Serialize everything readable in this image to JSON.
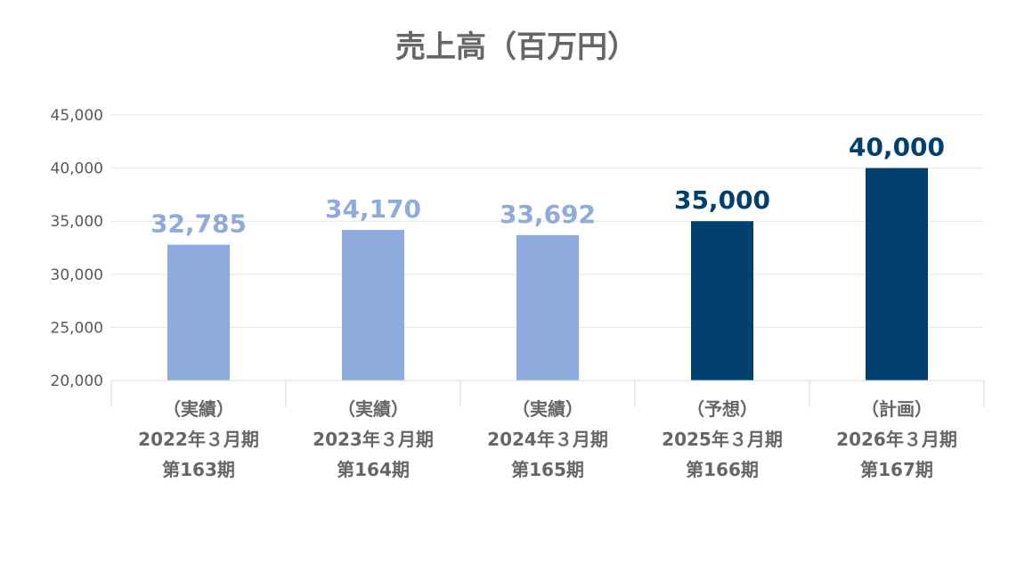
{
  "chart_data": {
    "type": "bar",
    "title": "売上高（百万円）",
    "xlabel": "",
    "ylabel": "",
    "ylim": [
      20000,
      45000
    ],
    "yticks": [
      "20,000",
      "25,000",
      "30,000",
      "35,000",
      "40,000",
      "45,000"
    ],
    "ytick_values": [
      20000,
      25000,
      30000,
      35000,
      40000,
      45000
    ],
    "grid": true,
    "legend": "none",
    "categories": [
      {
        "line1": "（実績）",
        "line2": "2022年３月期",
        "line3": "第163期"
      },
      {
        "line1": "（実績）",
        "line2": "2023年３月期",
        "line3": "第164期"
      },
      {
        "line1": "（実績）",
        "line2": "2024年３月期",
        "line3": "第165期"
      },
      {
        "line1": "（予想）",
        "line2": "2025年３月期",
        "line3": "第166期"
      },
      {
        "line1": "（計画）",
        "line2": "2026年３月期",
        "line3": "第167期"
      }
    ],
    "values": [
      32785,
      34170,
      33692,
      35000,
      40000
    ],
    "value_labels": [
      "32,785",
      "34,170",
      "33,692",
      "35,000",
      "40,000"
    ],
    "colors": {
      "actual": "#8faadc",
      "forecast": "#003f6e",
      "gridline": "#e6e6e6",
      "axis": "#d9d9d9"
    },
    "bar_kinds": [
      "actual",
      "actual",
      "actual",
      "forecast",
      "forecast"
    ]
  }
}
